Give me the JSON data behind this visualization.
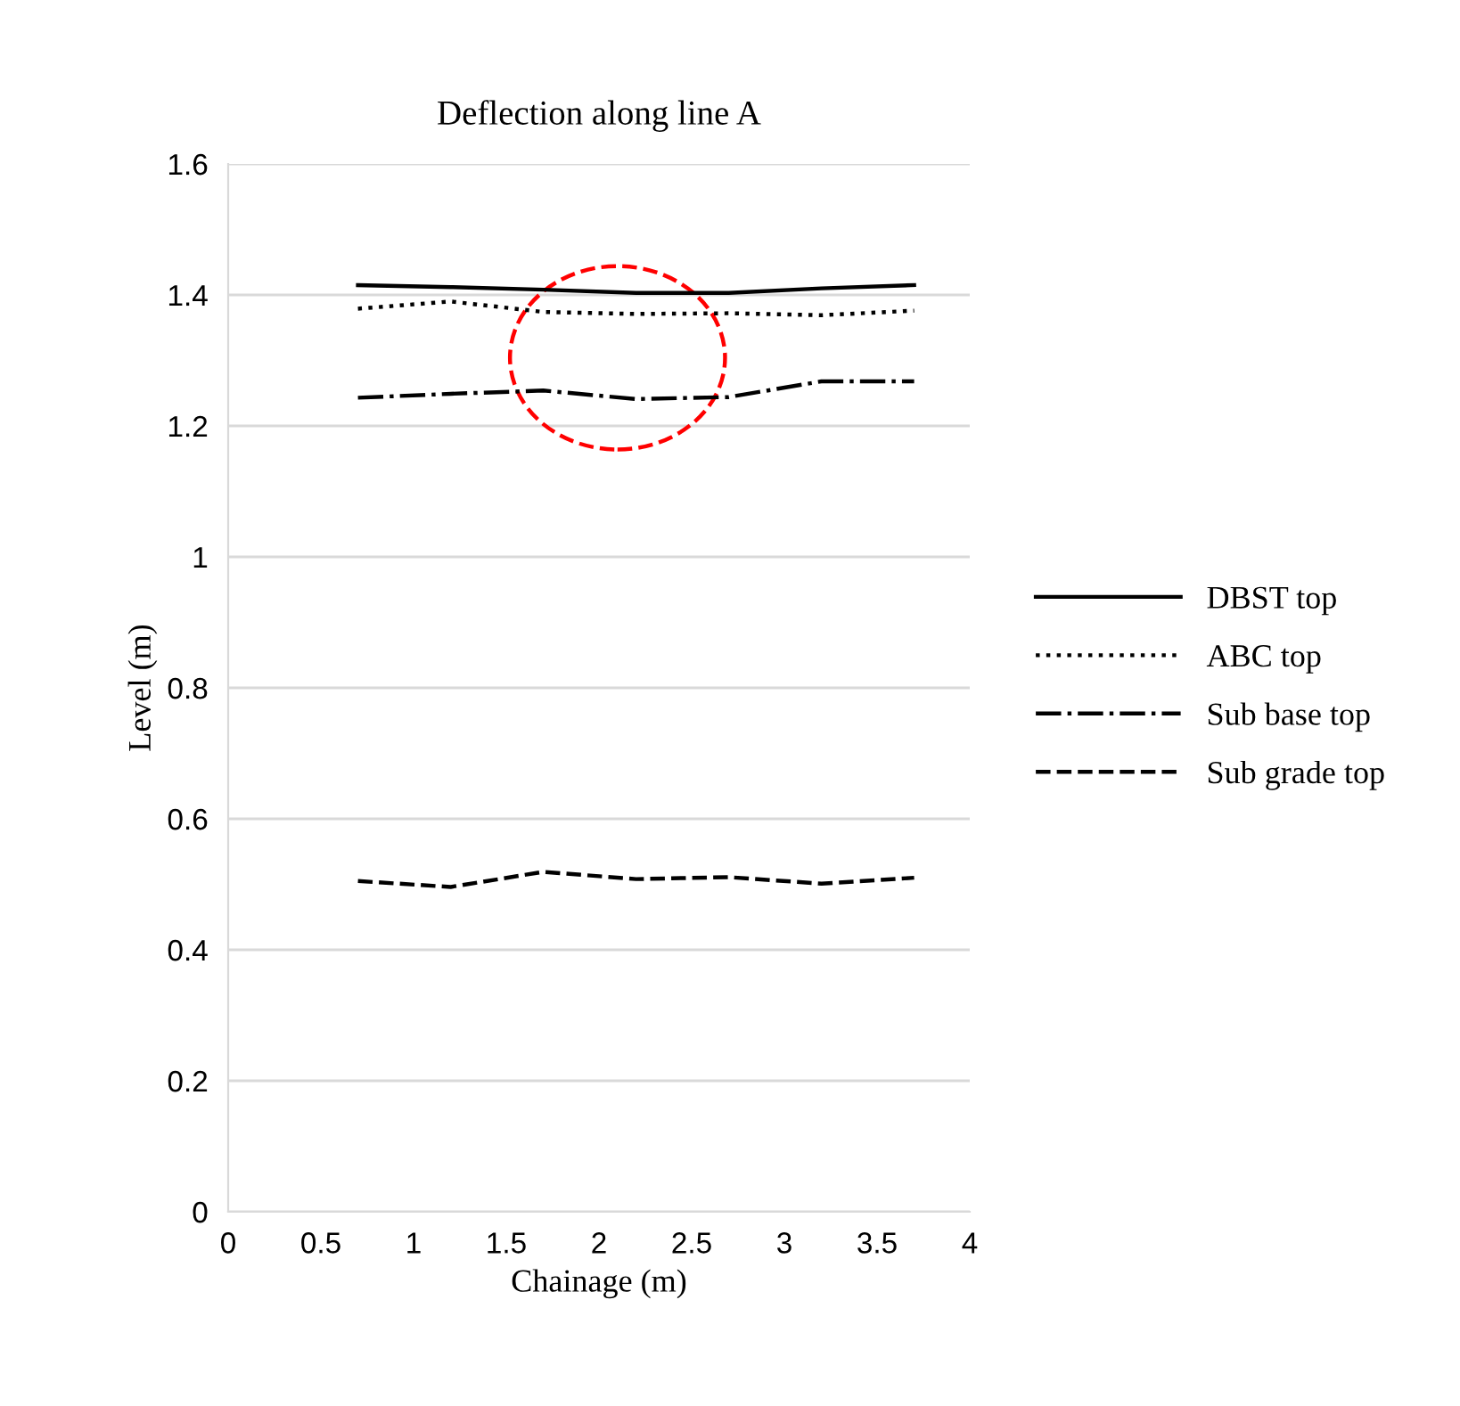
{
  "chart_data": {
    "type": "line",
    "title": "Deflection along line A",
    "xlabel": "Chainage (m)",
    "ylabel": "Level (m)",
    "x": [
      0.7,
      1.2,
      1.7,
      2.2,
      2.7,
      3.2,
      3.7
    ],
    "series": [
      {
        "name": "DBST top",
        "color": "#000000",
        "line_style": "solid",
        "values": [
          1.415,
          1.412,
          1.408,
          1.403,
          1.403,
          1.41,
          1.415
        ]
      },
      {
        "name": "ABC top",
        "color": "#000000",
        "line_style": "dotted",
        "values": [
          1.379,
          1.39,
          1.374,
          1.371,
          1.372,
          1.369,
          1.376
        ]
      },
      {
        "name": "Sub base top",
        "color": "#000000",
        "line_style": "dashdot",
        "values": [
          1.243,
          1.249,
          1.254,
          1.241,
          1.244,
          1.268,
          1.268
        ]
      },
      {
        "name": "Sub grade top",
        "color": "#000000",
        "line_style": "dashed",
        "values": [
          0.505,
          0.496,
          0.519,
          0.508,
          0.511,
          0.501,
          0.51
        ]
      }
    ],
    "xlim": [
      0,
      4
    ],
    "xticks": [
      0,
      0.5,
      1,
      1.5,
      2,
      2.5,
      3,
      3.5,
      4
    ],
    "ylim": [
      0,
      1.6
    ],
    "yticks": [
      0,
      0.2,
      0.4,
      0.6,
      0.8,
      1,
      1.2,
      1.4,
      1.6
    ],
    "grid": "y",
    "legend": "right",
    "marker": "none"
  }
}
